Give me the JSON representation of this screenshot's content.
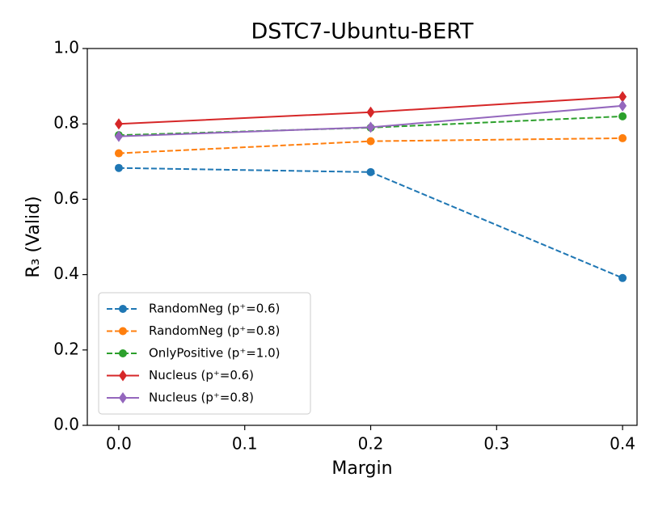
{
  "chart_data": {
    "type": "line",
    "title": "DSTC7-Ubuntu-BERT",
    "x_label": "Margin",
    "y_label": "R₃ (Valid)",
    "x": [
      0.0,
      0.2,
      0.4
    ],
    "xlim": [
      -0.025,
      0.4115
    ],
    "xticks": [
      {
        "value": 0,
        "label": "0.0"
      },
      0.1,
      0.2,
      0.3,
      0.4
    ],
    "ylim": [
      0,
      1
    ],
    "yticks": [
      {
        "value": 0,
        "label": "0.0"
      },
      0.2,
      0.4,
      0.6,
      0.8,
      {
        "value": 1,
        "label": "1.0"
      }
    ],
    "legend": "lower left",
    "series": [
      {
        "name": "RandomNeg (p⁺=0.6)",
        "color": "#1f77b4",
        "linestyle": "dashed",
        "marker": "circle",
        "values": [
          0.683,
          0.672,
          0.391
        ]
      },
      {
        "name": "RandomNeg (p⁺=0.8)",
        "color": "#ff7f0e",
        "linestyle": "dashed",
        "marker": "circle",
        "values": [
          0.722,
          0.754,
          0.762
        ]
      },
      {
        "name": "OnlyPositive (p⁺=1.0)",
        "color": "#2ca02c",
        "linestyle": "dashed",
        "marker": "circle",
        "values": [
          0.77,
          0.79,
          0.82
        ]
      },
      {
        "name": "Nucleus (p⁺=0.6)",
        "color": "#d62728",
        "linestyle": "solid",
        "marker": "diamond",
        "values": [
          0.8,
          0.831,
          0.872
        ]
      },
      {
        "name": "Nucleus (p⁺=0.8)",
        "color": "#9467bd",
        "linestyle": "solid",
        "marker": "diamond",
        "values": [
          0.767,
          0.791,
          0.848
        ]
      }
    ]
  }
}
